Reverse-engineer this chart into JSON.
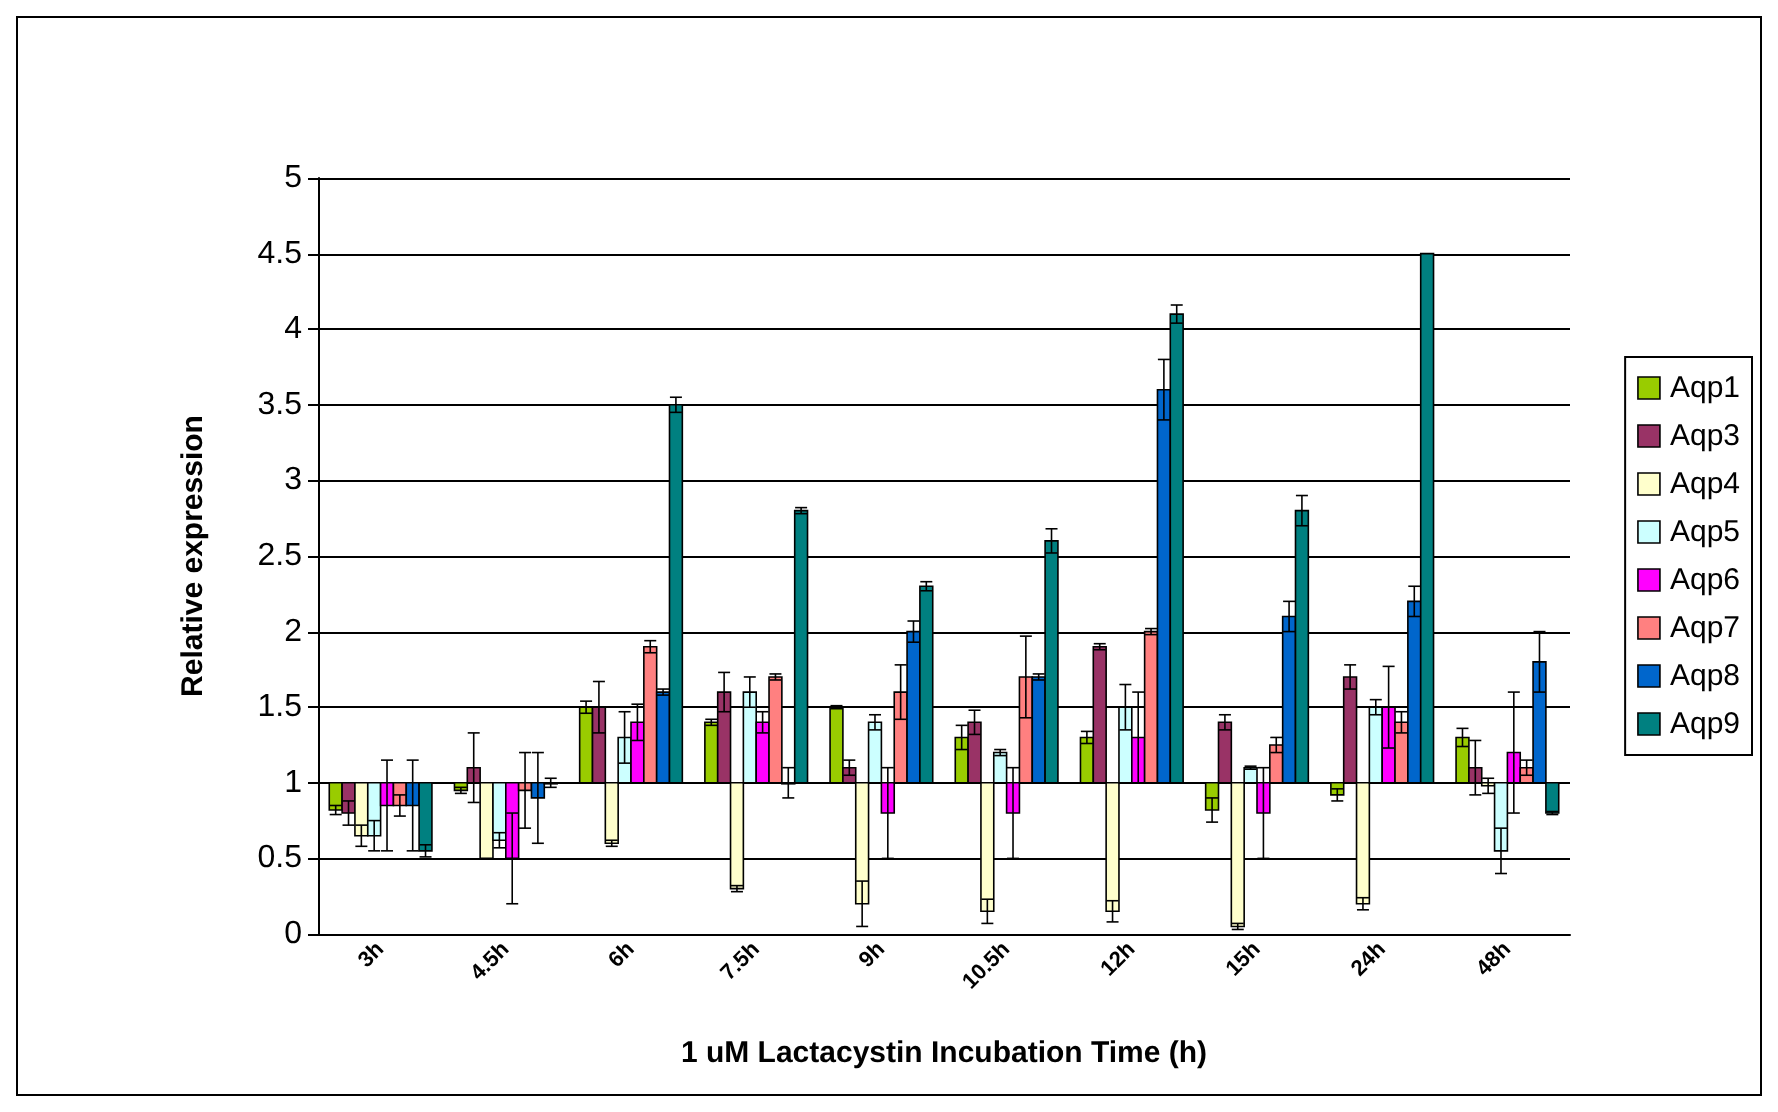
{
  "chart_data": {
    "type": "bar",
    "xlabel": "1 uM Lactacystin Incubation Time (h)",
    "ylabel": "Relative expression",
    "categories": [
      "3h",
      "4.5h",
      "6h",
      "7.5h",
      "9h",
      "10.5h",
      "12h",
      "15h",
      "24h",
      "48h"
    ],
    "ylim": [
      0,
      5
    ],
    "yticks": [
      0,
      0.5,
      1,
      1.5,
      2,
      2.5,
      3,
      3.5,
      4,
      4.5,
      5
    ],
    "grid": "y",
    "legend": "right",
    "series": [
      {
        "name": "Aqp1",
        "color": "#99cc00",
        "base": [
          1,
          1,
          1,
          1,
          1,
          1,
          1,
          1,
          1,
          1
        ],
        "values": [
          -0.18,
          -0.05,
          0.5,
          0.4,
          0.5,
          0.3,
          0.3,
          -0.18,
          -0.08,
          0.3
        ],
        "errors": [
          0.03,
          0.02,
          0.04,
          0.02,
          0.01,
          0.08,
          0.04,
          0.08,
          0.04,
          0.06
        ]
      },
      {
        "name": "Aqp3",
        "color": "#993366",
        "base": [
          1,
          1,
          1,
          1,
          1,
          1,
          1,
          1,
          1,
          1
        ],
        "values": [
          -0.2,
          0.1,
          0.5,
          0.6,
          0.1,
          0.4,
          0.9,
          0.4,
          0.7,
          0.1
        ],
        "errors": [
          0.08,
          0.23,
          0.17,
          0.13,
          0.05,
          0.08,
          0.02,
          0.05,
          0.08,
          0.18
        ]
      },
      {
        "name": "Aqp4",
        "color": "#ffffcc",
        "base": [
          1,
          1,
          1,
          1,
          1,
          1,
          1,
          1,
          1,
          1
        ],
        "values": [
          -0.35,
          -0.5,
          -0.4,
          -0.7,
          -0.8,
          -0.85,
          -0.85,
          -0.95,
          -0.8,
          -0.02
        ],
        "errors": [
          0.07,
          null,
          0.02,
          0.02,
          0.15,
          0.08,
          0.07,
          0.02,
          0.04,
          0.05
        ]
      },
      {
        "name": "Aqp5",
        "color": "#ccffff",
        "base": [
          1,
          1,
          1,
          1,
          1,
          1,
          1,
          1,
          1,
          1
        ],
        "values": [
          -0.35,
          -0.38,
          0.3,
          0.6,
          0.4,
          0.2,
          0.5,
          0.1,
          0.5,
          -0.45
        ],
        "errors": [
          0.1,
          0.05,
          0.17,
          0.1,
          0.05,
          0.02,
          0.15,
          0.01,
          0.05,
          0.15
        ]
      },
      {
        "name": "Aqp6",
        "color": "#ff00ff",
        "base": [
          1,
          1,
          1,
          1,
          1,
          1,
          1,
          1,
          1,
          1
        ],
        "values": [
          -0.15,
          -0.5,
          0.4,
          0.4,
          -0.2,
          -0.2,
          0.3,
          -0.2,
          0.5,
          0.2
        ],
        "errors": [
          0.3,
          0.3,
          0.12,
          0.07,
          0.3,
          0.3,
          0.3,
          0.3,
          0.27,
          0.4
        ]
      },
      {
        "name": "Aqp7",
        "color": "#ff8080",
        "base": [
          1,
          1,
          1,
          1,
          1,
          1,
          1,
          1,
          1,
          1
        ],
        "values": [
          -0.15,
          -0.05,
          0.9,
          0.7,
          0.6,
          0.7,
          1.0,
          0.25,
          0.4,
          0.1
        ],
        "errors": [
          0.07,
          0.25,
          0.04,
          0.02,
          0.18,
          0.27,
          0.02,
          0.05,
          0.07,
          0.05
        ]
      },
      {
        "name": "Aqp8",
        "color": "#0066cc",
        "base": [
          1,
          1,
          1,
          1,
          1,
          1,
          1,
          1,
          1,
          1
        ],
        "values": [
          -0.15,
          -0.1,
          0.6,
          0.0,
          1.0,
          0.7,
          2.6,
          1.1,
          1.2,
          0.8
        ],
        "errors": [
          0.3,
          0.3,
          0.02,
          0.1,
          0.07,
          0.02,
          0.2,
          0.1,
          0.1,
          0.2
        ]
      },
      {
        "name": "Aqp9",
        "color": "#008080",
        "base": [
          1,
          1,
          1,
          1,
          1,
          1,
          1,
          1,
          1,
          1
        ],
        "values": [
          -0.45,
          0.0,
          2.5,
          1.8,
          1.3,
          1.6,
          3.1,
          1.8,
          3.5,
          -0.2
        ],
        "errors": [
          0.04,
          0.03,
          0.05,
          0.02,
          0.03,
          0.08,
          0.06,
          0.1,
          null,
          0.01
        ]
      }
    ]
  }
}
